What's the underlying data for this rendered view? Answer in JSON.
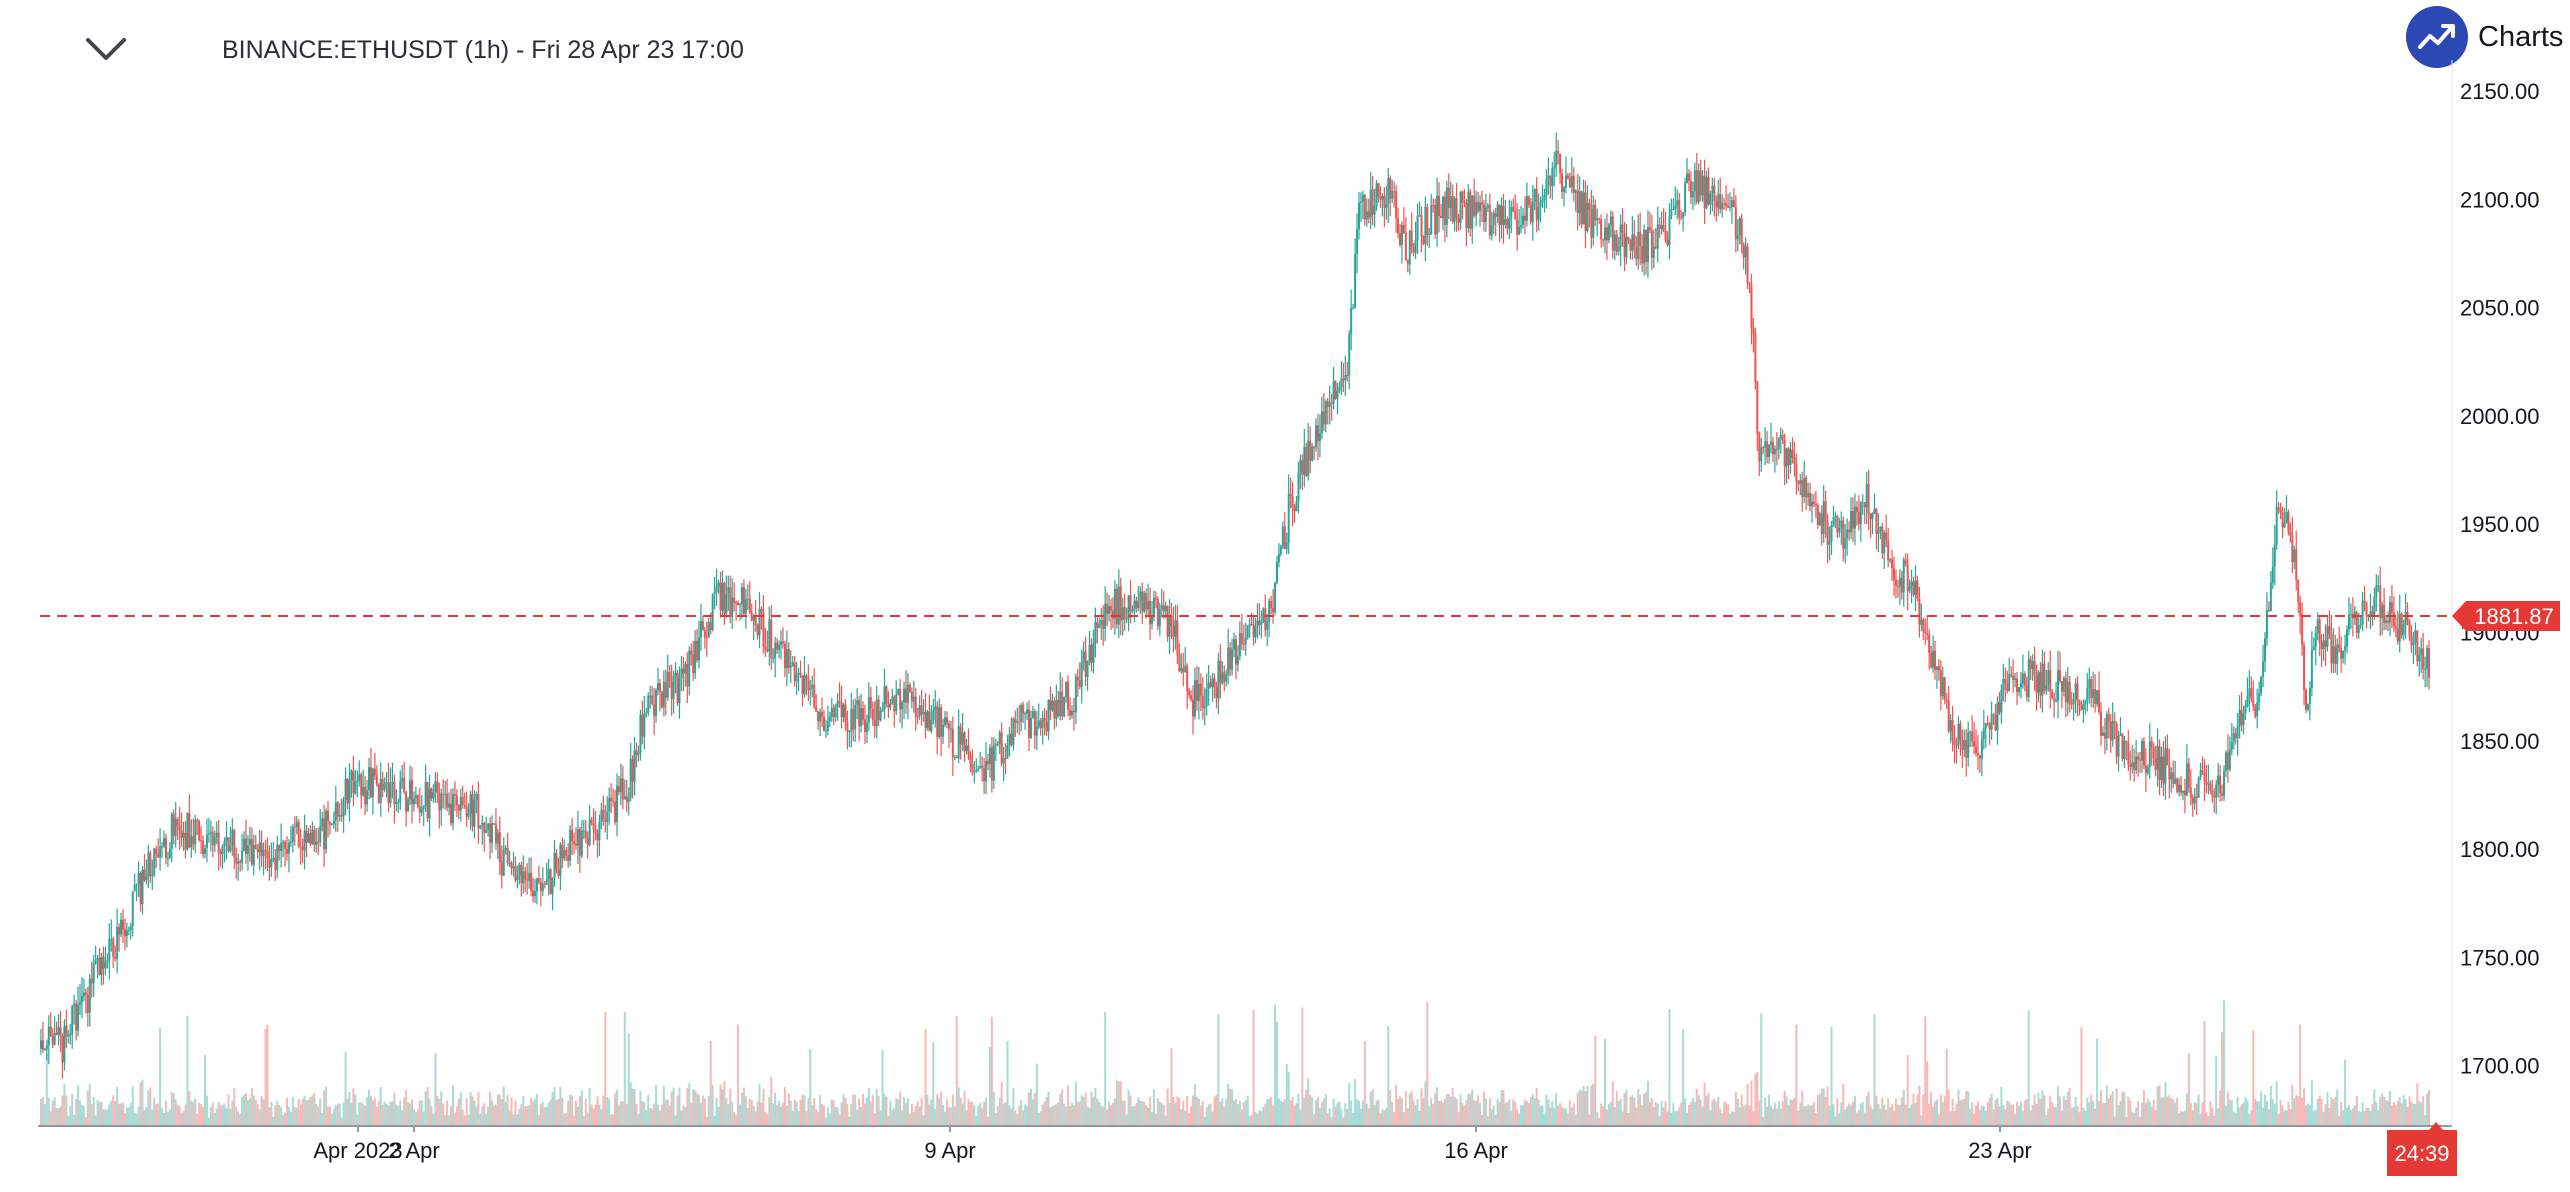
{
  "header": {
    "symbol_title": "BINANCE:ETHUSDT (1h) - Fri 28 Apr 23 17:00",
    "brand_text": "Charts p",
    "brand_color": "#2b49b5",
    "collapse_icon": "chevron-down-icon"
  },
  "colors": {
    "up": "#26a69a",
    "down": "#ef5350",
    "price_line": "#e53935",
    "up_volume": "#a6dcd6",
    "down_volume": "#f7b9b8"
  },
  "chart_data": {
    "type": "candlestick",
    "symbol": "BINANCE:ETHUSDT",
    "interval": "1h",
    "y_range": [
      1670,
      2170
    ],
    "y_ticks": [
      "2150.00",
      "2100.00",
      "2050.00",
      "2000.00",
      "1950.00",
      "1900.00",
      "1850.00",
      "1800.00",
      "1750.00",
      "1700.00"
    ],
    "x_ticks": [
      "Apr 2023",
      "2 Apr",
      "9 Apr",
      "16 Apr",
      "23 Apr"
    ],
    "last_price": "1881.87",
    "countdown": "24:39",
    "grid": false,
    "anchors": [
      [
        0,
        1715
      ],
      [
        10,
        1708
      ],
      [
        25,
        1735
      ],
      [
        40,
        1760
      ],
      [
        55,
        1790
      ],
      [
        70,
        1812
      ],
      [
        85,
        1800
      ],
      [
        100,
        1802
      ],
      [
        115,
        1795
      ],
      [
        130,
        1805
      ],
      [
        145,
        1808
      ],
      [
        160,
        1830
      ],
      [
        175,
        1828
      ],
      [
        190,
        1824
      ],
      [
        205,
        1822
      ],
      [
        225,
        1816
      ],
      [
        240,
        1788
      ],
      [
        255,
        1778
      ],
      [
        270,
        1802
      ],
      [
        285,
        1808
      ],
      [
        300,
        1828
      ],
      [
        310,
        1868
      ],
      [
        330,
        1878
      ],
      [
        345,
        1915
      ],
      [
        360,
        1912
      ],
      [
        375,
        1895
      ],
      [
        390,
        1872
      ],
      [
        405,
        1860
      ],
      [
        420,
        1860
      ],
      [
        435,
        1872
      ],
      [
        450,
        1865
      ],
      [
        470,
        1848
      ],
      [
        485,
        1838
      ],
      [
        500,
        1858
      ],
      [
        515,
        1860
      ],
      [
        530,
        1873
      ],
      [
        545,
        1908
      ],
      [
        560,
        1918
      ],
      [
        580,
        1900
      ],
      [
        590,
        1870
      ],
      [
        600,
        1875
      ],
      [
        615,
        1898
      ],
      [
        630,
        1912
      ],
      [
        640,
        1960
      ],
      [
        650,
        1985
      ],
      [
        660,
        2005
      ],
      [
        668,
        2015
      ],
      [
        675,
        2092
      ],
      [
        690,
        2105
      ],
      [
        700,
        2075
      ],
      [
        705,
        2085
      ],
      [
        720,
        2098
      ],
      [
        740,
        2092
      ],
      [
        755,
        2088
      ],
      [
        770,
        2102
      ],
      [
        775,
        2120
      ],
      [
        785,
        2100
      ],
      [
        800,
        2085
      ],
      [
        815,
        2078
      ],
      [
        830,
        2082
      ],
      [
        845,
        2108
      ],
      [
        860,
        2098
      ],
      [
        870,
        2088
      ],
      [
        875,
        2065
      ],
      [
        880,
        1975
      ],
      [
        890,
        1990
      ],
      [
        900,
        1975
      ],
      [
        915,
        1948
      ],
      [
        925,
        1945
      ],
      [
        935,
        1965
      ],
      [
        945,
        1935
      ],
      [
        960,
        1918
      ],
      [
        970,
        1885
      ],
      [
        980,
        1850
      ],
      [
        990,
        1845
      ],
      [
        1005,
        1870
      ],
      [
        1020,
        1880
      ],
      [
        1035,
        1875
      ],
      [
        1050,
        1870
      ],
      [
        1060,
        1852
      ],
      [
        1075,
        1843
      ],
      [
        1090,
        1838
      ],
      [
        1100,
        1830
      ],
      [
        1115,
        1825
      ],
      [
        1125,
        1860
      ],
      [
        1135,
        1870
      ],
      [
        1140,
        1902
      ],
      [
        1145,
        1958
      ],
      [
        1150,
        1950
      ],
      [
        1155,
        1925
      ],
      [
        1160,
        1870
      ],
      [
        1165,
        1900
      ],
      [
        1175,
        1890
      ],
      [
        1185,
        1908
      ],
      [
        1195,
        1915
      ],
      [
        1205,
        1905
      ],
      [
        1215,
        1900
      ],
      [
        1223,
        1882
      ]
    ]
  }
}
